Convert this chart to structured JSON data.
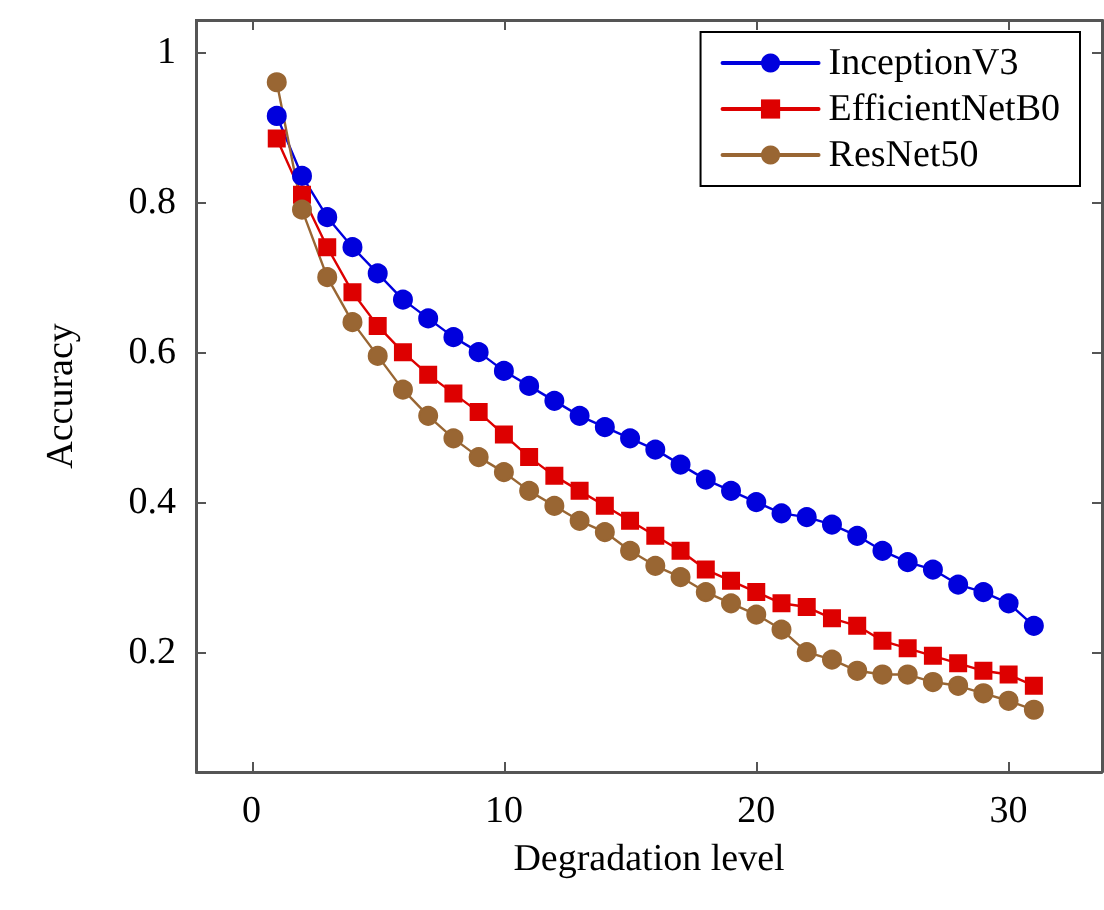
{
  "chart_data": {
    "type": "line",
    "xlabel": "Degradation level",
    "ylabel": "Accuracy",
    "x": [
      1,
      2,
      3,
      4,
      5,
      6,
      7,
      8,
      9,
      10,
      11,
      12,
      13,
      14,
      15,
      16,
      17,
      18,
      19,
      20,
      21,
      22,
      23,
      24,
      25,
      26,
      27,
      28,
      29,
      30,
      31
    ],
    "series": [
      {
        "name": "InceptionV3",
        "color": "#0000dd",
        "marker": "circle",
        "values": [
          0.915,
          0.835,
          0.78,
          0.74,
          0.705,
          0.67,
          0.645,
          0.62,
          0.6,
          0.575,
          0.555,
          0.535,
          0.515,
          0.5,
          0.485,
          0.47,
          0.45,
          0.43,
          0.415,
          0.4,
          0.385,
          0.38,
          0.37,
          0.355,
          0.335,
          0.32,
          0.31,
          0.29,
          0.28,
          0.265,
          0.235
        ]
      },
      {
        "name": "EfficientNetB0",
        "color": "#dd0000",
        "marker": "square",
        "values": [
          0.885,
          0.81,
          0.74,
          0.68,
          0.635,
          0.6,
          0.57,
          0.545,
          0.52,
          0.49,
          0.46,
          0.435,
          0.415,
          0.395,
          0.375,
          0.355,
          0.335,
          0.31,
          0.295,
          0.28,
          0.265,
          0.26,
          0.245,
          0.235,
          0.215,
          0.205,
          0.195,
          0.185,
          0.175,
          0.17,
          0.155
        ]
      },
      {
        "name": "ResNet50",
        "color": "#996633",
        "marker": "circle",
        "values": [
          0.96,
          0.79,
          0.7,
          0.64,
          0.595,
          0.55,
          0.515,
          0.485,
          0.46,
          0.44,
          0.415,
          0.395,
          0.375,
          0.36,
          0.335,
          0.315,
          0.3,
          0.28,
          0.265,
          0.25,
          0.23,
          0.2,
          0.19,
          0.175,
          0.17,
          0.17,
          0.16,
          0.155,
          0.145,
          0.135,
          0.123
        ]
      }
    ],
    "xlim": [
      -2.2,
      33.7
    ],
    "xticks": [
      0,
      10,
      20,
      30
    ],
    "ylim": [
      0.04,
      1.043
    ],
    "yticks": [
      0.2,
      0.4,
      0.6,
      0.8,
      1
    ],
    "grid": false,
    "legend": "top right",
    "line_style": "solid"
  }
}
